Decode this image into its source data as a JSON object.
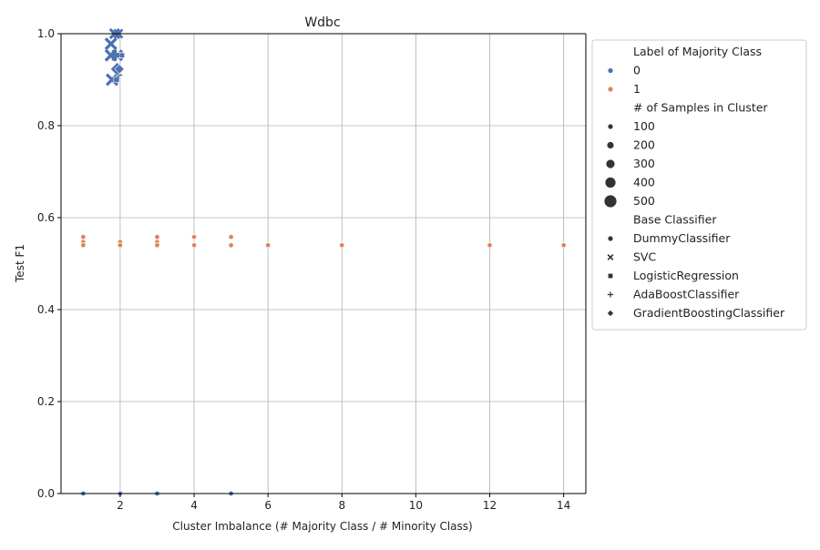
{
  "chart_data": {
    "type": "scatter",
    "title": "Wdbc",
    "xlabel": "Cluster Imbalance (# Majority Class / # Minority Class)",
    "ylabel": "Test F1",
    "xlim": [
      0.4,
      14.6
    ],
    "ylim": [
      0,
      1.0
    ],
    "xticks": [
      2,
      4,
      6,
      8,
      10,
      12,
      14
    ],
    "yticks": [
      0.0,
      0.2,
      0.4,
      0.6,
      0.8,
      1.0
    ],
    "grid": true,
    "legend_position": "outside-right",
    "colors": {
      "0": "#4c72b0",
      "1": "#dd8452"
    },
    "legend": {
      "hue_title": "Label of Majority Class",
      "hue_items": [
        {
          "label": "0",
          "color": "#4c72b0"
        },
        {
          "label": "1",
          "color": "#dd8452"
        }
      ],
      "size_title": "# of Samples in Cluster",
      "size_items": [
        {
          "label": "100",
          "size": 100
        },
        {
          "label": "200",
          "size": 200
        },
        {
          "label": "300",
          "size": 300
        },
        {
          "label": "400",
          "size": 400
        },
        {
          "label": "500",
          "size": 500
        }
      ],
      "style_title": "Base Classifier",
      "style_items": [
        {
          "label": "DummyClassifier",
          "marker": "circle"
        },
        {
          "label": "SVC",
          "marker": "x"
        },
        {
          "label": "LogisticRegression",
          "marker": "square"
        },
        {
          "label": "AdaBoostClassifier",
          "marker": "plus"
        },
        {
          "label": "GradientBoostingClassifier",
          "marker": "diamond"
        }
      ]
    },
    "points": [
      {
        "x": 1.0,
        "y": 0.0,
        "hue": "0",
        "size": 40,
        "marker": "circle"
      },
      {
        "x": 2.0,
        "y": 0.0,
        "hue": "0",
        "size": 40,
        "marker": "circle"
      },
      {
        "x": 3.0,
        "y": 0.0,
        "hue": "0",
        "size": 40,
        "marker": "circle"
      },
      {
        "x": 5.0,
        "y": 0.0,
        "hue": "0",
        "size": 40,
        "marker": "circle"
      },
      {
        "x": 1.0,
        "y": 0.558,
        "hue": "1",
        "size": 40,
        "marker": "circle"
      },
      {
        "x": 1.0,
        "y": 0.547,
        "hue": "1",
        "size": 40,
        "marker": "circle"
      },
      {
        "x": 1.0,
        "y": 0.54,
        "hue": "1",
        "size": 40,
        "marker": "circle"
      },
      {
        "x": 2.0,
        "y": 0.547,
        "hue": "1",
        "size": 40,
        "marker": "circle"
      },
      {
        "x": 2.0,
        "y": 0.54,
        "hue": "1",
        "size": 40,
        "marker": "circle"
      },
      {
        "x": 3.0,
        "y": 0.558,
        "hue": "1",
        "size": 40,
        "marker": "circle"
      },
      {
        "x": 3.0,
        "y": 0.547,
        "hue": "1",
        "size": 40,
        "marker": "circle"
      },
      {
        "x": 3.0,
        "y": 0.54,
        "hue": "1",
        "size": 40,
        "marker": "circle"
      },
      {
        "x": 4.0,
        "y": 0.558,
        "hue": "1",
        "size": 40,
        "marker": "circle"
      },
      {
        "x": 4.0,
        "y": 0.54,
        "hue": "1",
        "size": 40,
        "marker": "circle"
      },
      {
        "x": 5.0,
        "y": 0.558,
        "hue": "1",
        "size": 40,
        "marker": "circle"
      },
      {
        "x": 5.0,
        "y": 0.54,
        "hue": "1",
        "size": 40,
        "marker": "circle"
      },
      {
        "x": 6.0,
        "y": 0.54,
        "hue": "1",
        "size": 40,
        "marker": "circle"
      },
      {
        "x": 8.0,
        "y": 0.54,
        "hue": "1",
        "size": 40,
        "marker": "circle"
      },
      {
        "x": 12.0,
        "y": 0.54,
        "hue": "1",
        "size": 40,
        "marker": "circle"
      },
      {
        "x": 14.0,
        "y": 0.54,
        "hue": "1",
        "size": 40,
        "marker": "circle"
      },
      {
        "x": 1.75,
        "y": 0.978,
        "hue": "0",
        "size": 200,
        "marker": "x"
      },
      {
        "x": 1.75,
        "y": 0.953,
        "hue": "0",
        "size": 200,
        "marker": "x"
      },
      {
        "x": 1.78,
        "y": 0.9,
        "hue": "0",
        "size": 200,
        "marker": "x"
      },
      {
        "x": 1.92,
        "y": 0.953,
        "hue": "0",
        "size": 170,
        "marker": "x"
      },
      {
        "x": 1.85,
        "y": 1.0,
        "hue": "0",
        "size": 150,
        "marker": "x"
      },
      {
        "x": 1.95,
        "y": 1.0,
        "hue": "0",
        "size": 120,
        "marker": "x"
      },
      {
        "x": 1.95,
        "y": 0.953,
        "hue": "0",
        "size": 60,
        "marker": "square"
      },
      {
        "x": 2.05,
        "y": 0.953,
        "hue": "0",
        "size": 50,
        "marker": "square"
      },
      {
        "x": 1.9,
        "y": 0.9,
        "hue": "0",
        "size": 60,
        "marker": "square"
      },
      {
        "x": 1.95,
        "y": 0.91,
        "hue": "0",
        "size": 90,
        "marker": "plus"
      },
      {
        "x": 1.88,
        "y": 0.953,
        "hue": "0",
        "size": 90,
        "marker": "plus"
      },
      {
        "x": 1.92,
        "y": 0.923,
        "hue": "0",
        "size": 200,
        "marker": "diamond"
      },
      {
        "x": 1.98,
        "y": 0.923,
        "hue": "0",
        "size": 100,
        "marker": "diamond"
      }
    ]
  }
}
